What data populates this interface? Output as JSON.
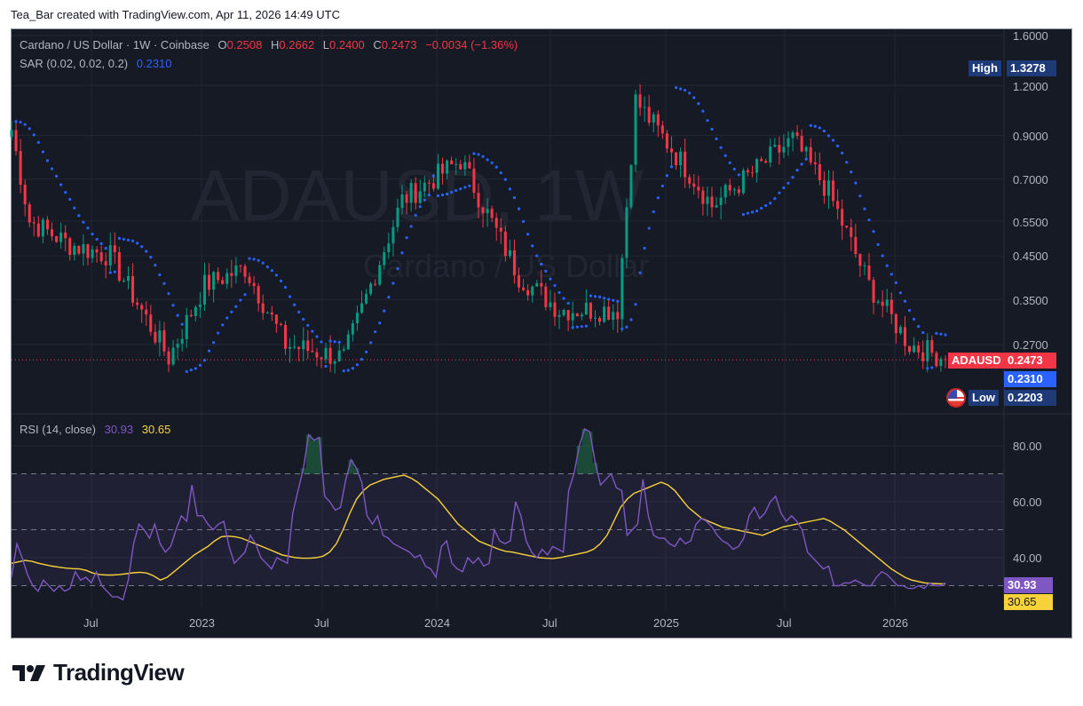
{
  "caption": "Tea_Bar created with TradingView.com, Apr 11, 2026 14:49 UTC",
  "header": {
    "symbol_desc": "Cardano / US Dollar · 1W · Coinbase",
    "open_label": "O",
    "open": "0.2508",
    "high_label": "H",
    "high": "0.2662",
    "low_label": "L",
    "low": "0.2400",
    "close_label": "C",
    "close": "0.2473",
    "change": "−0.0034 (−1.36%)"
  },
  "sar_legend": {
    "label": "SAR (0.02, 0.02, 0.2)",
    "value": "0.2310"
  },
  "rsi_legend": {
    "label": "RSI (14, close)",
    "rsi_value": "30.93",
    "ma_value": "30.65"
  },
  "watermark": {
    "symbol": "ADAUSD, 1W",
    "name": "Cardano / US Dollar"
  },
  "price_axis": [
    "1.6000",
    "1.2000",
    "0.9000",
    "0.7000",
    "0.5500",
    "0.4500",
    "0.3500",
    "0.2700"
  ],
  "rsi_axis": [
    "80.00",
    "60.00",
    "40.00"
  ],
  "time_axis": [
    "Jul",
    "2023",
    "Jul",
    "2024",
    "Jul",
    "2025",
    "Jul",
    "2026"
  ],
  "tags": {
    "high_label": "High",
    "high_value": "1.3278",
    "symbol_label": "ADAUSD",
    "last_price": "0.2473",
    "sar_value": "0.2310",
    "low_label": "Low",
    "low_value": "0.2203",
    "rsi_value": "30.93",
    "rsi_ma_value": "30.65"
  },
  "brand": {
    "name": "TradingView"
  },
  "colors": {
    "up": "#089981",
    "down": "#f23645",
    "sar": "#2962ff",
    "rsi": "#7e57c2",
    "rsi_ma": "#f7d23a",
    "background": "#161a25",
    "grid": "#232632",
    "text": "#b2b5be"
  },
  "chart_data": [
    {
      "type": "candlestick",
      "title": "Cardano / US Dollar · 1W · Coinbase",
      "scale": "log",
      "ylim": [
        0.2203,
        1.6
      ],
      "x_range": [
        "2022-04",
        "2026-04"
      ],
      "key_points": [
        {
          "date": "2022-04",
          "close": 0.93
        },
        {
          "date": "2022-05",
          "close": 0.55
        },
        {
          "date": "2022-07",
          "close": 0.48
        },
        {
          "date": "2022-09",
          "close": 0.45
        },
        {
          "date": "2022-12",
          "close": 0.25
        },
        {
          "date": "2023-02",
          "close": 0.38
        },
        {
          "date": "2023-04",
          "close": 0.42
        },
        {
          "date": "2023-06",
          "close": 0.27
        },
        {
          "date": "2023-09",
          "close": 0.25
        },
        {
          "date": "2023-12",
          "close": 0.62
        },
        {
          "date": "2024-03",
          "close": 0.78
        },
        {
          "date": "2024-06",
          "close": 0.4
        },
        {
          "date": "2024-08",
          "close": 0.33
        },
        {
          "date": "2024-11",
          "close": 0.33
        },
        {
          "date": "2024-12",
          "close": 1.1
        },
        {
          "date": "2025-03",
          "close": 0.7
        },
        {
          "date": "2025-04",
          "close": 0.6
        },
        {
          "date": "2025-08",
          "close": 0.88
        },
        {
          "date": "2025-10",
          "close": 0.65
        },
        {
          "date": "2025-12",
          "close": 0.38
        },
        {
          "date": "2026-02",
          "close": 0.27
        },
        {
          "date": "2026-04",
          "close": 0.2473
        }
      ],
      "period_high": 1.3278,
      "period_low": 0.2203,
      "last": {
        "open": 0.2508,
        "high": 0.2662,
        "low": 0.24,
        "close": 0.2473,
        "change": -0.0034,
        "change_pct": -1.36
      }
    },
    {
      "type": "scatter",
      "title": "SAR (0.02, 0.02, 0.2)",
      "last_value": 0.231
    },
    {
      "type": "line",
      "title": "RSI (14, close)",
      "ylim": [
        20,
        90
      ],
      "bands": {
        "upper": 70,
        "middle": 50,
        "lower": 30
      },
      "series": [
        {
          "name": "RSI",
          "color": "#7e57c2",
          "last": 30.93,
          "values": [
            33,
            45,
            40,
            34,
            30,
            28,
            32,
            30,
            28,
            30,
            28,
            29,
            35,
            32,
            33,
            31,
            35,
            30,
            28,
            26,
            26,
            25,
            32,
            45,
            52,
            50,
            47,
            52,
            45,
            42,
            44,
            50,
            55,
            53,
            66,
            55,
            55,
            52,
            50,
            52,
            53,
            44,
            38,
            40,
            42,
            48,
            45,
            40,
            38,
            36,
            40,
            39,
            38,
            56,
            64,
            72,
            84,
            82,
            83,
            62,
            60,
            57,
            58,
            68,
            75,
            72,
            67,
            55,
            52,
            55,
            48,
            47,
            45,
            44,
            43,
            42,
            40,
            41,
            37,
            36,
            33,
            44,
            46,
            38,
            36,
            35,
            40,
            38,
            40,
            37,
            38,
            50,
            46,
            45,
            46,
            60,
            55,
            46,
            42,
            40,
            43,
            41,
            44,
            43,
            42,
            64,
            70,
            80,
            86,
            85,
            74,
            66,
            68,
            70,
            65,
            64,
            48,
            50,
            52,
            68,
            55,
            48,
            47,
            47,
            45,
            44,
            47,
            45,
            46,
            52,
            54,
            53,
            51,
            48,
            46,
            45,
            43,
            44,
            47,
            55,
            58,
            54,
            56,
            60,
            62,
            56,
            53,
            55,
            53,
            50,
            42,
            40,
            38,
            36,
            37,
            30,
            30,
            31,
            31,
            32,
            31,
            30,
            30,
            33,
            35,
            34,
            32,
            30,
            30,
            29,
            29,
            30,
            29,
            31,
            30,
            30,
            31
          ]
        },
        {
          "name": "RSI-based MA",
          "color": "#f7d23a",
          "last": 30.65,
          "values": [
            38,
            38.5,
            39,
            38.7,
            38,
            37.5,
            37,
            36.6,
            36.3,
            36.1,
            36,
            35.5,
            34.5,
            34,
            33.8,
            33.8,
            34,
            34.3,
            34.6,
            34.8,
            34.5,
            33.5,
            32,
            33,
            35,
            37,
            39,
            41,
            42.5,
            44,
            46,
            47.5,
            47.7,
            47.5,
            47,
            46,
            45,
            44,
            43,
            42,
            41,
            40.5,
            40,
            39.8,
            39.8,
            40,
            40.5,
            42,
            45,
            50,
            56,
            61,
            64,
            66,
            67,
            68,
            68.5,
            69,
            69.5,
            68.5,
            67,
            65,
            63,
            61,
            58,
            55,
            52,
            50,
            48,
            46,
            45,
            44,
            43,
            42.3,
            42,
            41.5,
            41,
            40.5,
            40,
            39.8,
            39.7,
            40,
            40.5,
            41,
            41.5,
            42,
            43,
            45,
            48,
            53,
            58,
            61,
            63,
            64,
            65,
            66,
            67,
            66,
            64,
            61,
            58,
            56,
            54,
            53,
            52,
            51,
            50.5,
            50,
            49.5,
            49,
            48.5,
            48,
            49,
            50,
            51,
            51.5,
            52,
            52.5,
            53,
            53.5,
            54,
            53,
            51.5,
            50,
            48,
            46,
            44,
            42,
            40,
            38,
            36,
            34.5,
            33,
            32,
            31.5,
            31,
            30.8,
            30.7,
            30.65
          ]
        }
      ]
    }
  ]
}
